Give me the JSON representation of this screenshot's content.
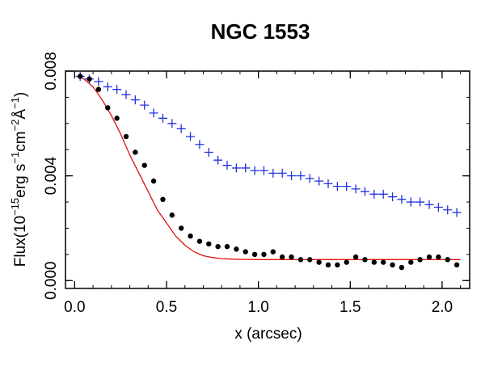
{
  "chart_data": {
    "type": "scatter",
    "title": "NGC 1553",
    "xlabel": "x (arcsec)",
    "ylabel": {
      "prefix": "Flux(10",
      "exp1": "−15",
      "unit1": "erg s",
      "exp2": "−1",
      "unit2": "cm",
      "exp3": "−2",
      "unit3": "Å",
      "exp4": "−1",
      "suffix": ")"
    },
    "xlim": [
      -0.05,
      2.15
    ],
    "ylim": [
      -0.0003,
      0.008
    ],
    "xticks": [
      0.0,
      0.5,
      1.0,
      1.5,
      2.0
    ],
    "xtick_labels": [
      "0.0",
      "0.5",
      "1.0",
      "1.5",
      "2.0"
    ],
    "yticks": [
      0.0,
      0.004,
      0.008
    ],
    "ytick_labels": [
      "0.000",
      "0.004",
      "0.008"
    ],
    "colors": {
      "plus": "#2233dd",
      "dot": "#000000",
      "model": "#e01010",
      "axes": "#000000"
    },
    "series": [
      {
        "name": "blue-plus",
        "marker": "plus",
        "x": [
          0.03,
          0.08,
          0.13,
          0.18,
          0.23,
          0.28,
          0.33,
          0.38,
          0.43,
          0.48,
          0.53,
          0.58,
          0.63,
          0.68,
          0.73,
          0.78,
          0.83,
          0.88,
          0.93,
          0.98,
          1.03,
          1.08,
          1.13,
          1.18,
          1.23,
          1.28,
          1.33,
          1.38,
          1.43,
          1.48,
          1.53,
          1.58,
          1.63,
          1.68,
          1.73,
          1.78,
          1.83,
          1.88,
          1.93,
          1.98,
          2.03,
          2.08
        ],
        "y": [
          0.0078,
          0.0077,
          0.0076,
          0.0074,
          0.0073,
          0.0071,
          0.0069,
          0.0067,
          0.0064,
          0.0062,
          0.006,
          0.0058,
          0.0055,
          0.0052,
          0.0049,
          0.0046,
          0.0044,
          0.0043,
          0.0043,
          0.0042,
          0.0042,
          0.0041,
          0.0041,
          0.004,
          0.004,
          0.0039,
          0.0038,
          0.0037,
          0.0036,
          0.0036,
          0.0035,
          0.0034,
          0.0033,
          0.0033,
          0.0032,
          0.0031,
          0.003,
          0.003,
          0.0029,
          0.0028,
          0.0027,
          0.0026
        ]
      },
      {
        "name": "black-dots",
        "marker": "dot",
        "x": [
          0.03,
          0.08,
          0.13,
          0.18,
          0.23,
          0.28,
          0.33,
          0.38,
          0.43,
          0.48,
          0.53,
          0.58,
          0.63,
          0.68,
          0.73,
          0.78,
          0.83,
          0.88,
          0.93,
          0.98,
          1.03,
          1.08,
          1.13,
          1.18,
          1.23,
          1.28,
          1.33,
          1.38,
          1.43,
          1.48,
          1.53,
          1.58,
          1.63,
          1.68,
          1.73,
          1.78,
          1.83,
          1.88,
          1.93,
          1.98,
          2.03,
          2.08
        ],
        "y": [
          0.0078,
          0.0077,
          0.0073,
          0.0066,
          0.0062,
          0.0055,
          0.0049,
          0.0044,
          0.0038,
          0.0031,
          0.0025,
          0.002,
          0.0017,
          0.0015,
          0.0014,
          0.0013,
          0.0013,
          0.0012,
          0.0011,
          0.001,
          0.001,
          0.0011,
          0.0009,
          0.0009,
          0.0008,
          0.0008,
          0.0007,
          0.0006,
          0.0006,
          0.0007,
          0.0009,
          0.0008,
          0.0007,
          0.0007,
          0.0006,
          0.0005,
          0.0007,
          0.0008,
          0.0009,
          0.0009,
          0.0008,
          0.0006
        ]
      },
      {
        "name": "red-model",
        "marker": "line",
        "x": [
          0.02,
          0.05,
          0.1,
          0.15,
          0.2,
          0.25,
          0.3,
          0.35,
          0.4,
          0.45,
          0.5,
          0.55,
          0.6,
          0.65,
          0.7,
          0.75,
          0.8,
          0.85,
          0.9,
          1.0,
          1.1,
          1.2,
          1.4,
          1.6,
          1.8,
          2.0,
          2.1
        ],
        "y": [
          0.0078,
          0.0077,
          0.0074,
          0.0069,
          0.0063,
          0.0056,
          0.0048,
          0.0041,
          0.0034,
          0.0027,
          0.0022,
          0.0017,
          0.00135,
          0.0011,
          0.00095,
          0.00088,
          0.00084,
          0.00082,
          0.00081,
          0.0008,
          0.0008,
          0.0008,
          0.0008,
          0.0008,
          0.0008,
          0.0008,
          0.0008
        ]
      }
    ]
  }
}
